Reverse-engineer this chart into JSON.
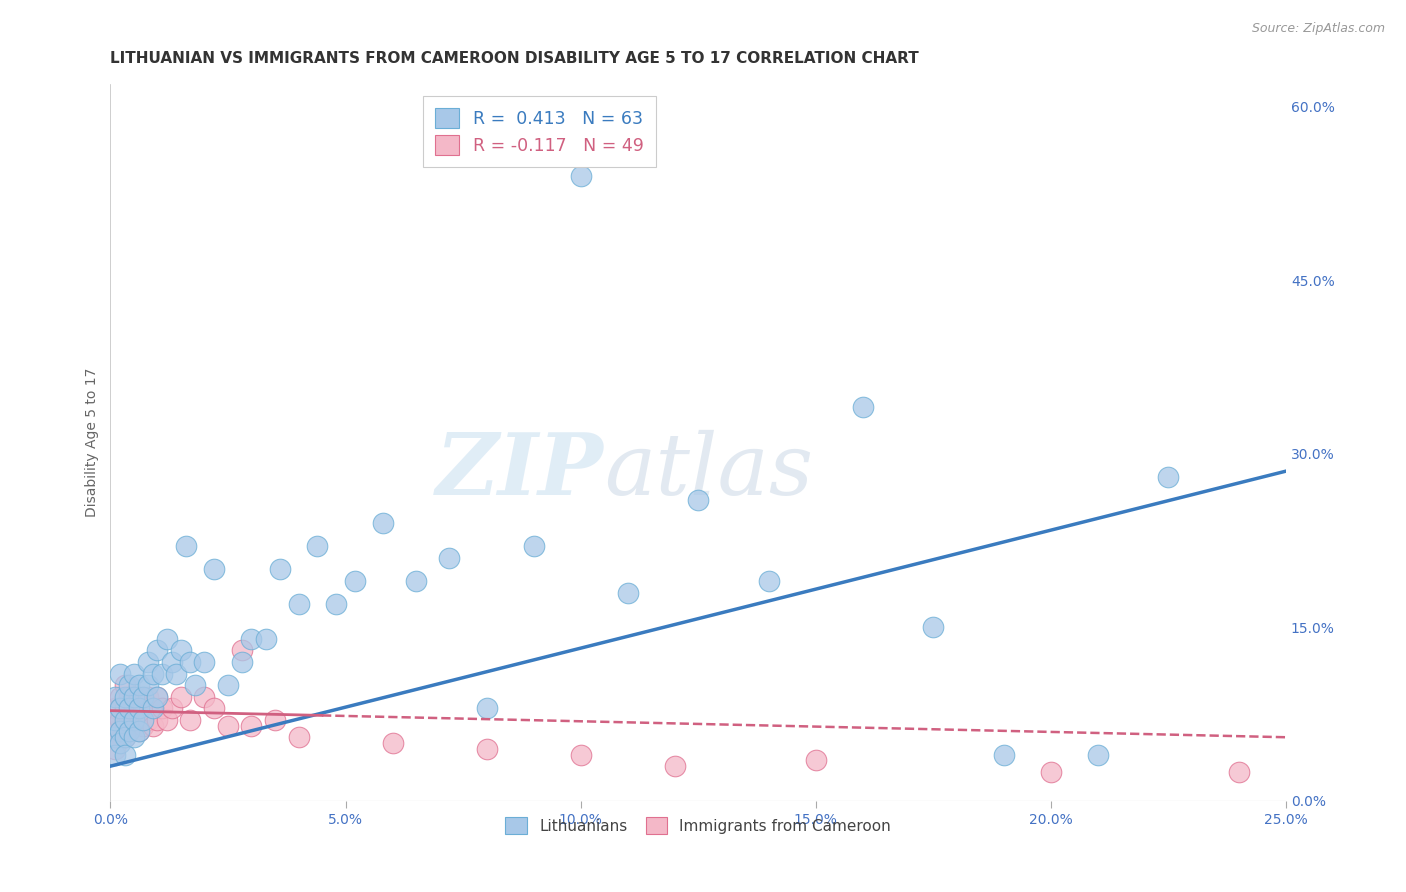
{
  "title": "LITHUANIAN VS IMMIGRANTS FROM CAMEROON DISABILITY AGE 5 TO 17 CORRELATION CHART",
  "source": "Source: ZipAtlas.com",
  "ylabel": "Disability Age 5 to 17",
  "xlim": [
    0.0,
    0.25
  ],
  "ylim": [
    0.0,
    0.62
  ],
  "xticks": [
    0.0,
    0.05,
    0.1,
    0.15,
    0.2,
    0.25
  ],
  "yticks_right": [
    0.0,
    0.15,
    0.3,
    0.45,
    0.6
  ],
  "background_color": "#ffffff",
  "watermark_zip": "ZIP",
  "watermark_atlas": "atlas",
  "legend_R1": "0.413",
  "legend_N1": "63",
  "legend_R2": "-0.117",
  "legend_N2": "49",
  "blue_color": "#a8c8e8",
  "blue_edge_color": "#6baed6",
  "blue_line_color": "#3a7bbf",
  "pink_color": "#f4b8c8",
  "pink_edge_color": "#e07090",
  "pink_line_color": "#d06080",
  "legend_label1": "Lithuanians",
  "legend_label2": "Immigrants from Cameroon",
  "grid_color": "#cccccc",
  "title_color": "#333333",
  "tick_color": "#4472c4",
  "ylabel_color": "#666666",
  "title_fontsize": 11,
  "axis_label_fontsize": 10,
  "tick_fontsize": 10,
  "blue_scatter_x": [
    0.001,
    0.001,
    0.001,
    0.001,
    0.002,
    0.002,
    0.002,
    0.002,
    0.003,
    0.003,
    0.003,
    0.003,
    0.004,
    0.004,
    0.004,
    0.005,
    0.005,
    0.005,
    0.005,
    0.006,
    0.006,
    0.006,
    0.007,
    0.007,
    0.008,
    0.008,
    0.009,
    0.009,
    0.01,
    0.01,
    0.011,
    0.012,
    0.013,
    0.014,
    0.015,
    0.016,
    0.017,
    0.018,
    0.02,
    0.022,
    0.025,
    0.028,
    0.03,
    0.033,
    0.036,
    0.04,
    0.044,
    0.048,
    0.052,
    0.058,
    0.065,
    0.072,
    0.08,
    0.09,
    0.1,
    0.11,
    0.125,
    0.14,
    0.16,
    0.175,
    0.19,
    0.21,
    0.225
  ],
  "blue_scatter_y": [
    0.055,
    0.07,
    0.09,
    0.04,
    0.06,
    0.08,
    0.11,
    0.05,
    0.07,
    0.09,
    0.055,
    0.04,
    0.08,
    0.1,
    0.06,
    0.09,
    0.07,
    0.055,
    0.11,
    0.08,
    0.1,
    0.06,
    0.09,
    0.07,
    0.1,
    0.12,
    0.08,
    0.11,
    0.09,
    0.13,
    0.11,
    0.14,
    0.12,
    0.11,
    0.13,
    0.22,
    0.12,
    0.1,
    0.12,
    0.2,
    0.1,
    0.12,
    0.14,
    0.14,
    0.2,
    0.17,
    0.22,
    0.17,
    0.19,
    0.24,
    0.19,
    0.21,
    0.08,
    0.22,
    0.54,
    0.18,
    0.26,
    0.19,
    0.34,
    0.15,
    0.04,
    0.04,
    0.28
  ],
  "pink_scatter_x": [
    0.001,
    0.001,
    0.001,
    0.001,
    0.001,
    0.002,
    0.002,
    0.002,
    0.002,
    0.003,
    0.003,
    0.003,
    0.003,
    0.004,
    0.004,
    0.004,
    0.005,
    0.005,
    0.005,
    0.006,
    0.006,
    0.006,
    0.007,
    0.007,
    0.008,
    0.008,
    0.009,
    0.009,
    0.01,
    0.01,
    0.011,
    0.012,
    0.013,
    0.015,
    0.017,
    0.02,
    0.022,
    0.025,
    0.028,
    0.03,
    0.035,
    0.04,
    0.06,
    0.08,
    0.1,
    0.12,
    0.15,
    0.2,
    0.24
  ],
  "pink_scatter_y": [
    0.045,
    0.06,
    0.07,
    0.08,
    0.055,
    0.07,
    0.09,
    0.06,
    0.08,
    0.065,
    0.08,
    0.1,
    0.055,
    0.07,
    0.09,
    0.06,
    0.08,
    0.07,
    0.09,
    0.075,
    0.09,
    0.06,
    0.08,
    0.065,
    0.09,
    0.07,
    0.08,
    0.065,
    0.09,
    0.07,
    0.08,
    0.07,
    0.08,
    0.09,
    0.07,
    0.09,
    0.08,
    0.065,
    0.13,
    0.065,
    0.07,
    0.055,
    0.05,
    0.045,
    0.04,
    0.03,
    0.035,
    0.025,
    0.025
  ],
  "blue_trendline_x": [
    0.0,
    0.25
  ],
  "blue_trendline_y": [
    0.03,
    0.285
  ],
  "pink_trendline_x": [
    0.0,
    0.25
  ],
  "pink_trendline_y": [
    0.078,
    0.055
  ]
}
